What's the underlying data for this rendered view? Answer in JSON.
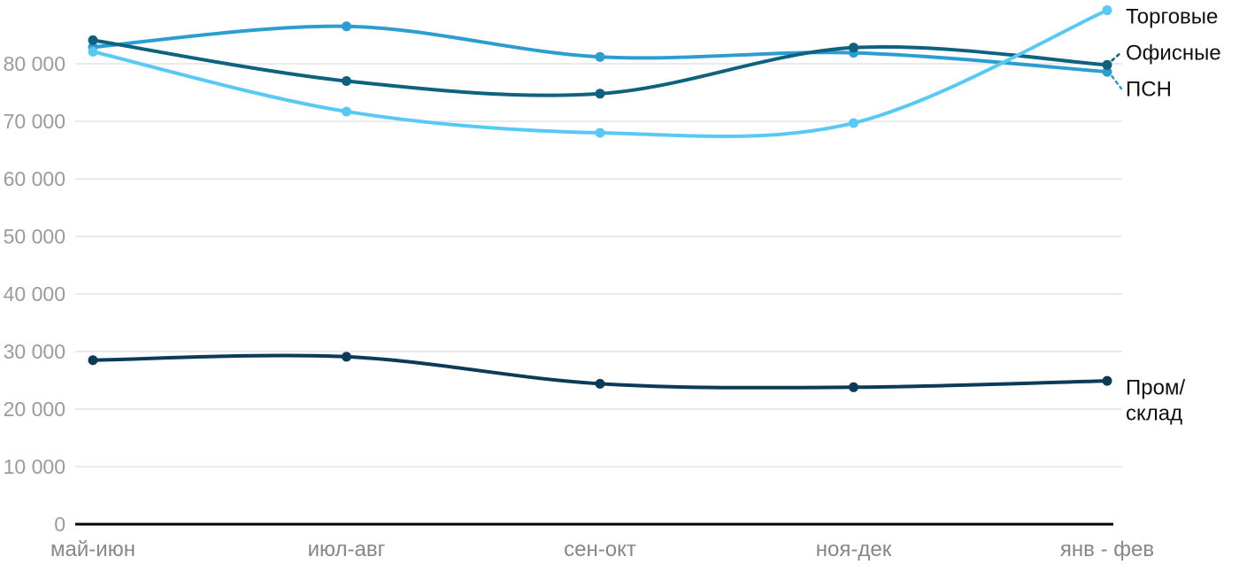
{
  "chart_data": {
    "type": "line",
    "title": "",
    "xlabel": "",
    "ylabel": "",
    "categories": [
      "май-июн",
      "июл-авг",
      "сен-окт",
      "ноя-дек",
      "янв - фев"
    ],
    "series": [
      {
        "name": "Пром/склад",
        "label_lines": [
          "Пром/",
          "склад"
        ],
        "color": "#0d3a57",
        "values": [
          28500,
          29100,
          24400,
          23800,
          24900
        ]
      },
      {
        "name": "ПСН",
        "label_lines": [
          "ПСН"
        ],
        "color": "#2b9dd1",
        "values": [
          82900,
          86500,
          81200,
          81900,
          78600
        ]
      },
      {
        "name": "Офисные",
        "label_lines": [
          "Офисные"
        ],
        "color": "#0e617f",
        "values": [
          84100,
          77000,
          74800,
          82800,
          79800
        ]
      },
      {
        "name": "Торговые",
        "label_lines": [
          "Торговые"
        ],
        "color": "#58c9f5",
        "values": [
          82100,
          71700,
          68000,
          69700,
          89300
        ]
      }
    ],
    "ylim": [
      0,
      90000
    ],
    "ytick_step": 10000,
    "ytick_labels": [
      "0",
      "10 000",
      "20 000",
      "30 000",
      "40 000",
      "50 000",
      "60 000",
      "70 000",
      "80 000"
    ],
    "grid": true,
    "legend_position": "direct-labels-right"
  },
  "colors": {
    "grid": "#e3e3e3",
    "axis_line": "#000000",
    "ytick_text": "#9b9b9b",
    "xtick_text": "#878787",
    "label_text": "#111111",
    "background": "#ffffff"
  }
}
